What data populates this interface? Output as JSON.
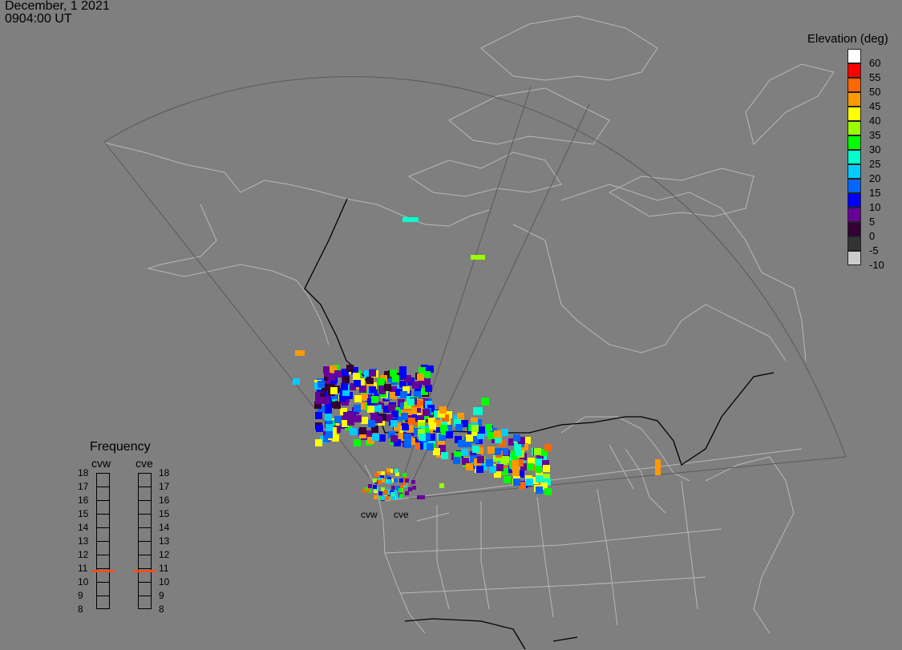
{
  "date": "December, 1 2021",
  "time": "0904:00 UT",
  "elevation_legend": {
    "title": "Elevation (deg)",
    "entries": [
      {
        "label": "60",
        "color": "#ffffff"
      },
      {
        "label": "55",
        "color": "#ff0000"
      },
      {
        "label": "50",
        "color": "#ff6600"
      },
      {
        "label": "45",
        "color": "#ff9900"
      },
      {
        "label": "40",
        "color": "#ffff00"
      },
      {
        "label": "35",
        "color": "#99ff00"
      },
      {
        "label": "30",
        "color": "#00ff00"
      },
      {
        "label": "25",
        "color": "#00ffcc"
      },
      {
        "label": "20",
        "color": "#00ccff"
      },
      {
        "label": "15",
        "color": "#0066ff"
      },
      {
        "label": "10",
        "color": "#0000ff"
      },
      {
        "label": "5",
        "color": "#660099"
      },
      {
        "label": "0",
        "color": "#330033"
      },
      {
        "label": "-5",
        "color": "#333333"
      },
      {
        "label": "-10",
        "color": "#cccccc"
      }
    ]
  },
  "frequency": {
    "title": "Frequency",
    "radars": [
      "cvw",
      "cve"
    ],
    "scale": [
      "18",
      "17",
      "16",
      "15",
      "14",
      "13",
      "12",
      "11",
      "10",
      "9",
      "8"
    ],
    "selected_mhz": [
      10.8,
      10.8
    ],
    "marker_color": "#e8521e"
  },
  "radar_labels": [
    "cvw",
    "cve"
  ]
}
